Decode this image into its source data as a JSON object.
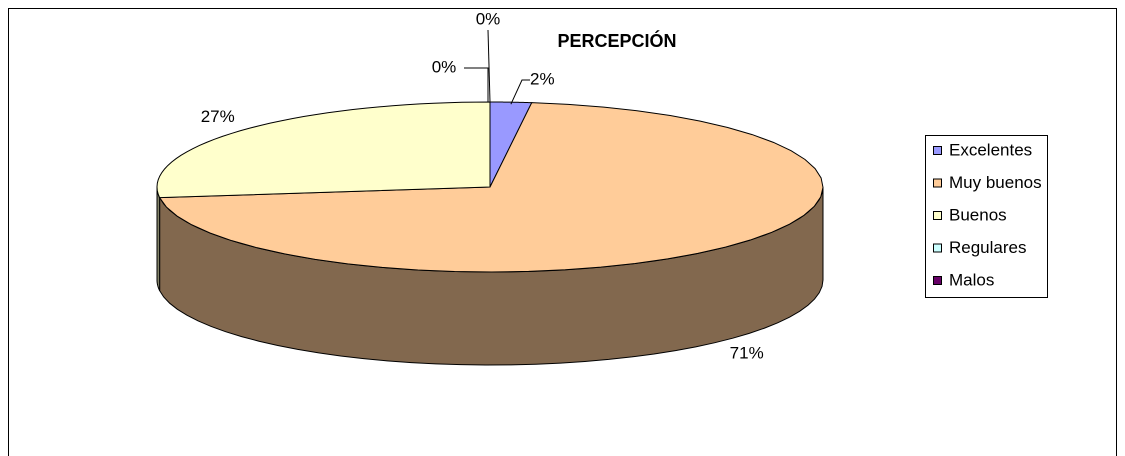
{
  "chart_data": {
    "type": "pie3d",
    "title": "PERCEPCIÓN",
    "categories": [
      "Excelentes",
      "Muy buenos",
      "Buenos",
      "Regulares",
      "Malos"
    ],
    "values": [
      2,
      71,
      27,
      0,
      0
    ],
    "value_labels": [
      "2%",
      "71%",
      "27%",
      "0%",
      "0%"
    ],
    "colors": [
      "#9999ff",
      "#ffcc99",
      "#ffffcc",
      "#ccffff",
      "#660066"
    ],
    "legend": "right"
  }
}
